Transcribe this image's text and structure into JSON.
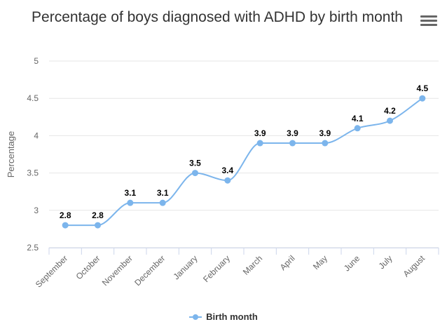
{
  "title": "Percentage of boys diagnosed with ADHD by birth month",
  "menu": {
    "icon": "hamburger-menu-icon"
  },
  "colors": {
    "series": "#7cb5ec",
    "grid": "#e6e6e6",
    "axis": "#ccd6eb",
    "text": "#666666"
  },
  "chart_data": {
    "type": "line",
    "title": "Percentage of boys diagnosed with ADHD by birth month",
    "ylabel": "Percentage",
    "xlabel": "",
    "categories": [
      "September",
      "October",
      "November",
      "December",
      "January",
      "February",
      "March",
      "April",
      "May",
      "June",
      "July",
      "August"
    ],
    "series": [
      {
        "name": "Birth month",
        "values": [
          2.8,
          2.8,
          3.1,
          3.1,
          3.5,
          3.4,
          3.9,
          3.9,
          3.9,
          4.1,
          4.2,
          4.5
        ]
      }
    ],
    "ylim": [
      2.5,
      5
    ],
    "yticks": [
      "2.5",
      "3",
      "3.5",
      "4",
      "4.5",
      "5"
    ],
    "grid": true,
    "smooth": true,
    "data_labels": true,
    "legend": "bottom-center"
  }
}
